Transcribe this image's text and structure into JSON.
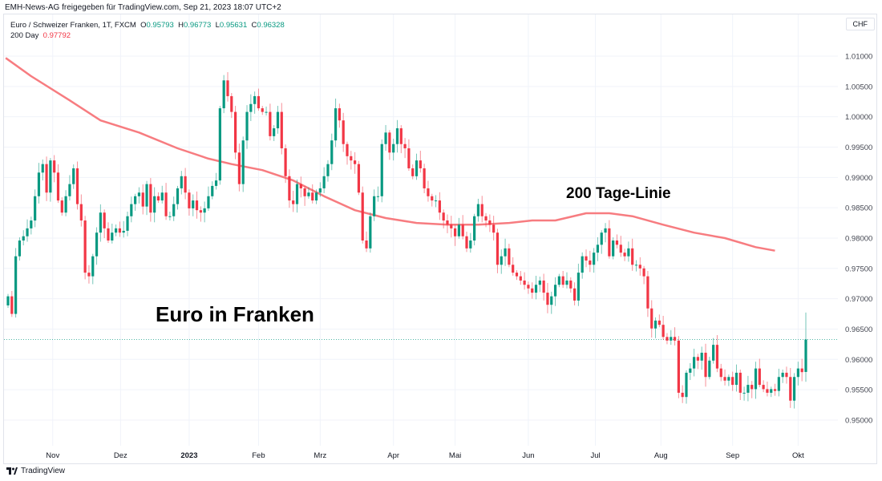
{
  "header": {
    "shared_by": "EMH-News-AG freigegeben für TradingView.com, Sep 21, 2023 18:07 UTC+2"
  },
  "legend": {
    "symbol": "Euro / Schweizer Franken, 1T, FXCM",
    "o_label": "O",
    "o": "0.95793",
    "h_label": "H",
    "h": "0.96773",
    "l_label": "L",
    "l": "0.95631",
    "c_label": "C",
    "c": "0.96328",
    "ma_label": "200 Day",
    "ma_value": "0.97792"
  },
  "currency_button": "CHF",
  "footer": {
    "brand": "TradingView"
  },
  "colors": {
    "up": "#089981",
    "down": "#f23645",
    "ma": "#f77c80",
    "grid": "#f0f3fa"
  },
  "chart_data": {
    "type": "candlestick",
    "title": "Euro in Franken",
    "annotations": [
      "Euro in Franken",
      "200 Tage-Linie"
    ],
    "ylim": [
      0.945,
      1.0125
    ],
    "y_ticks": [
      "1.01000",
      "1.00500",
      "1.00000",
      "0.99500",
      "0.99000",
      "0.98500",
      "0.98000",
      "0.97500",
      "0.97000",
      "0.96500",
      "0.96000",
      "0.95500",
      "0.95000"
    ],
    "x_ticks": [
      {
        "label": "Nov",
        "pos": 11.6,
        "bold": false
      },
      {
        "label": "Dez",
        "pos": 29.2,
        "bold": false
      },
      {
        "label": "2023",
        "pos": 47,
        "bold": true
      },
      {
        "label": "Feb",
        "pos": 65,
        "bold": false
      },
      {
        "label": "Mrz",
        "pos": 81,
        "bold": false
      },
      {
        "label": "Apr",
        "pos": 100,
        "bold": false
      },
      {
        "label": "Mai",
        "pos": 116,
        "bold": false
      },
      {
        "label": "Jun",
        "pos": 135,
        "bold": false
      },
      {
        "label": "Jul",
        "pos": 152.4,
        "bold": false
      },
      {
        "label": "Aug",
        "pos": 169.4,
        "bold": false
      },
      {
        "label": "Sep",
        "pos": 188,
        "bold": false
      },
      {
        "label": "Okt",
        "pos": 205,
        "bold": false
      }
    ],
    "last": {
      "open": 0.95793,
      "high": 0.96773,
      "low": 0.95631,
      "close": 0.96328
    },
    "closes": [
      0.9704,
      0.9675,
      0.977,
      0.9796,
      0.9803,
      0.9816,
      0.9829,
      0.9869,
      0.9908,
      0.9922,
      0.9875,
      0.9928,
      0.9908,
      0.9862,
      0.9842,
      0.9869,
      0.9889,
      0.9915,
      0.9856,
      0.9829,
      0.9743,
      0.9737,
      0.977,
      0.9809,
      0.9842,
      0.9816,
      0.9796,
      0.9809,
      0.9816,
      0.9809,
      0.9812,
      0.9836,
      0.9856,
      0.9869,
      0.9875,
      0.9852,
      0.9889,
      0.9842,
      0.9869,
      0.9862,
      0.9875,
      0.9836,
      0.9836,
      0.9856,
      0.9882,
      0.9902,
      0.9875,
      0.9849,
      0.9862,
      0.9846,
      0.9842,
      0.9849,
      0.9869,
      0.9886,
      0.9895,
      1.0014,
      1.006,
      1.0034,
      1.0008,
      0.9941,
      0.9889,
      0.9961,
      1.0008,
      1.0021,
      1.0034,
      1.0014,
      1.0008,
      1.0008,
      0.9968,
      0.9981,
      1.0008,
      0.9948,
      0.9902,
      0.9862,
      0.9856,
      0.9889,
      0.9882,
      0.9869,
      0.9875,
      0.9862,
      0.9875,
      0.9882,
      0.9902,
      0.9922,
      0.9961,
      1.0014,
      0.9994,
      0.9955,
      0.9935,
      0.9928,
      0.9922,
      0.9875,
      0.9796,
      0.9783,
      0.9836,
      0.9869,
      0.9869,
      0.9955,
      0.9974,
      0.9941,
      0.9955,
      0.9981,
      0.9955,
      0.9948,
      0.9915,
      0.9902,
      0.9928,
      0.9915,
      0.9882,
      0.9869,
      0.9862,
      0.9862,
      0.9842,
      0.9829,
      0.9822,
      0.9816,
      0.9803,
      0.9822,
      0.9803,
      0.9783,
      0.9796,
      0.9836,
      0.9856,
      0.9836,
      0.9829,
      0.9822,
      0.9809,
      0.9756,
      0.977,
      0.9783,
      0.9756,
      0.9743,
      0.9737,
      0.973,
      0.9723,
      0.9717,
      0.971,
      0.9723,
      0.973,
      0.971,
      0.969,
      0.9704,
      0.9723,
      0.9737,
      0.9723,
      0.973,
      0.9717,
      0.9697,
      0.9743,
      0.977,
      0.9763,
      0.9756,
      0.9776,
      0.9789,
      0.9809,
      0.9816,
      0.977,
      0.9796,
      0.9789,
      0.9776,
      0.977,
      0.9783,
      0.9756,
      0.9756,
      0.975,
      0.9737,
      0.9684,
      0.9651,
      0.9664,
      0.9657,
      0.9637,
      0.9631,
      0.9637,
      0.9631,
      0.9545,
      0.9538,
      0.9578,
      0.9585,
      0.9604,
      0.9598,
      0.9611,
      0.9571,
      0.9598,
      0.9624,
      0.9585,
      0.9571,
      0.9565,
      0.9571,
      0.9558,
      0.9578,
      0.9545,
      0.9545,
      0.9558,
      0.9551,
      0.9585,
      0.9558,
      0.9551,
      0.9545,
      0.9551,
      0.9548,
      0.9571,
      0.9578,
      0.9571,
      0.9532,
      0.9571,
      0.9585,
      0.9579,
      0.96328
    ],
    "ma200": [
      [
        -0.6,
        1.0097
      ],
      [
        6,
        1.0067
      ],
      [
        16,
        1.0027
      ],
      [
        24,
        0.9994
      ],
      [
        34,
        0.9974
      ],
      [
        44,
        0.9948
      ],
      [
        52,
        0.9931
      ],
      [
        58,
        0.9922
      ],
      [
        66,
        0.9912
      ],
      [
        74,
        0.9895
      ],
      [
        82,
        0.9869
      ],
      [
        90,
        0.9846
      ],
      [
        98,
        0.9833
      ],
      [
        106,
        0.9825
      ],
      [
        114,
        0.9822
      ],
      [
        122,
        0.9822
      ],
      [
        130,
        0.9825
      ],
      [
        136,
        0.9829
      ],
      [
        142,
        0.9829
      ],
      [
        150,
        0.9841
      ],
      [
        156,
        0.9841
      ],
      [
        162,
        0.9836
      ],
      [
        170,
        0.9822
      ],
      [
        178,
        0.9809
      ],
      [
        186,
        0.98
      ],
      [
        194,
        0.9785
      ],
      [
        199,
        0.97792
      ]
    ]
  }
}
